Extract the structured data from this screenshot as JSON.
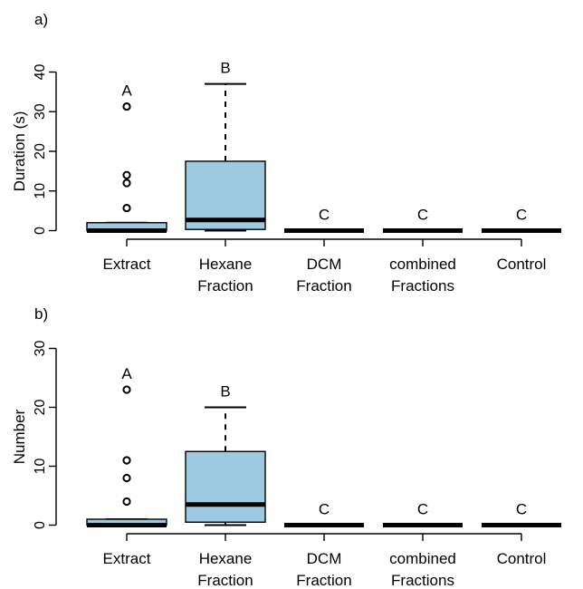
{
  "chart_data": [
    {
      "type": "box",
      "panel_label": "a)",
      "xlabel": "",
      "ylabel": "Duration (s)",
      "ylim": [
        0,
        40
      ],
      "yticks": [
        "0",
        "10",
        "20",
        "30",
        "40"
      ],
      "grid": false,
      "box_color": "#9ecae1",
      "categories": [
        {
          "line1": "Extract",
          "line2": "",
          "letter": "A",
          "whisker_low": 0,
          "q1": 0,
          "median": 0,
          "q3": 2,
          "whisker_high": 2,
          "outliers": [
            5.7,
            12.0,
            14.0,
            31.3
          ]
        },
        {
          "line1": "Hexane",
          "line2": "Fraction",
          "letter": "B",
          "whisker_low": 0,
          "q1": 0.3,
          "median": 2.7,
          "q3": 17.5,
          "whisker_high": 37.0,
          "outliers": []
        },
        {
          "line1": "DCM",
          "line2": "Fraction",
          "letter": "C",
          "whisker_low": 0,
          "q1": 0,
          "median": 0,
          "q3": 0,
          "whisker_high": 0,
          "outliers": []
        },
        {
          "line1": "combined",
          "line2": "Fractions",
          "letter": "C",
          "whisker_low": 0,
          "q1": 0,
          "median": 0,
          "q3": 0,
          "whisker_high": 0,
          "outliers": []
        },
        {
          "line1": "Control",
          "line2": "",
          "letter": "C",
          "whisker_low": 0,
          "q1": 0,
          "median": 0,
          "q3": 0,
          "whisker_high": 0,
          "outliers": []
        }
      ]
    },
    {
      "type": "box",
      "panel_label": "b)",
      "xlabel": "",
      "ylabel": "Number",
      "ylim": [
        0,
        30
      ],
      "yticks": [
        "0",
        "10",
        "20",
        "30"
      ],
      "grid": false,
      "box_color": "#9ecae1",
      "categories": [
        {
          "line1": "Extract",
          "line2": "",
          "letter": "A",
          "whisker_low": 0,
          "q1": 0,
          "median": 0,
          "q3": 1,
          "whisker_high": 1,
          "outliers": [
            4,
            8,
            11,
            23
          ]
        },
        {
          "line1": "Hexane",
          "line2": "Fraction",
          "letter": "B",
          "whisker_low": 0,
          "q1": 0.5,
          "median": 3.5,
          "q3": 12.5,
          "whisker_high": 20,
          "outliers": []
        },
        {
          "line1": "DCM",
          "line2": "Fraction",
          "letter": "C",
          "whisker_low": 0,
          "q1": 0,
          "median": 0,
          "q3": 0,
          "whisker_high": 0,
          "outliers": []
        },
        {
          "line1": "combined",
          "line2": "Fractions",
          "letter": "C",
          "whisker_low": 0,
          "q1": 0,
          "median": 0,
          "q3": 0,
          "whisker_high": 0,
          "outliers": []
        },
        {
          "line1": "Control",
          "line2": "",
          "letter": "C",
          "whisker_low": 0,
          "q1": 0,
          "median": 0,
          "q3": 0,
          "whisker_high": 0,
          "outliers": []
        }
      ]
    }
  ]
}
